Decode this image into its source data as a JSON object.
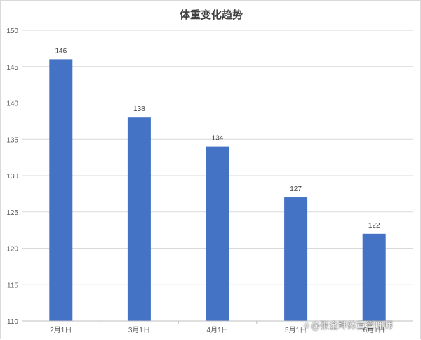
{
  "chart_data": {
    "type": "bar",
    "title": "体重变化趋势",
    "categories": [
      "2月1日",
      "3月1日",
      "4月1日",
      "5月1日",
      "6月1日"
    ],
    "values": [
      146,
      138,
      134,
      127,
      122
    ],
    "ylim": [
      110,
      150
    ],
    "yticks": [
      110,
      115,
      120,
      125,
      130,
      135,
      140,
      145,
      150
    ],
    "xlabel": "",
    "ylabel": "",
    "grid": true,
    "legend": "none",
    "bar_color": "#4472c4",
    "data_labels": true
  },
  "watermark": {
    "icon": "camera-icon",
    "text": "@张金坤体重管理师"
  }
}
